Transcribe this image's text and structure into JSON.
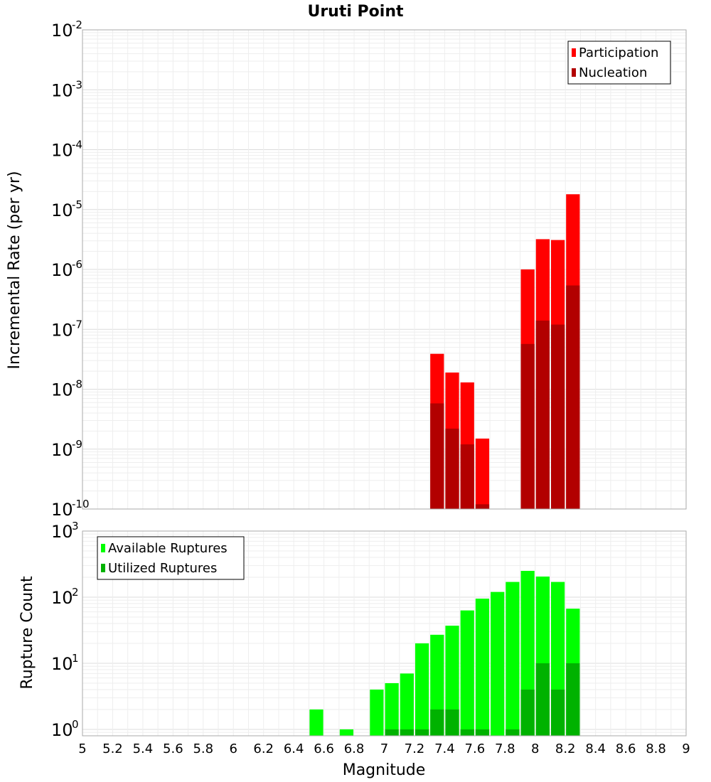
{
  "title": "Uruti Point",
  "chart_data": [
    {
      "type": "bar",
      "panel": "top",
      "ylabel": "Incremental Rate (per yr)",
      "yscale": "log",
      "ylim": [
        1e-10,
        0.01
      ],
      "y_ticks": [
        {
          "base": "10",
          "exp": "-2",
          "value": 0.01
        },
        {
          "base": "10",
          "exp": "-3",
          "value": 0.001
        },
        {
          "base": "10",
          "exp": "-4",
          "value": 0.0001
        },
        {
          "base": "10",
          "exp": "-5",
          "value": 1e-05
        },
        {
          "base": "10",
          "exp": "-6",
          "value": 1e-06
        },
        {
          "base": "10",
          "exp": "-7",
          "value": 1e-07
        },
        {
          "base": "10",
          "exp": "-8",
          "value": 1e-08
        },
        {
          "base": "10",
          "exp": "-9",
          "value": 1e-09
        },
        {
          "base": "10",
          "exp": "-10",
          "value": 1e-10
        }
      ],
      "legend_position": "top-right",
      "x": [
        7.35,
        7.45,
        7.55,
        7.65,
        7.95,
        8.05,
        8.15,
        8.25
      ],
      "series": [
        {
          "name": "Participation",
          "color": "#ff0000",
          "values": [
            3.9e-08,
            1.9e-08,
            1.3e-08,
            1.5e-09,
            1e-06,
            3.2e-06,
            3.1e-06,
            1.8e-05
          ]
        },
        {
          "name": "Nucleation",
          "color": "#b20000",
          "values": [
            5.8e-09,
            2.2e-09,
            1.2e-09,
            1.2e-10,
            5.7e-08,
            1.4e-07,
            1.2e-07,
            5.4e-07
          ]
        }
      ]
    },
    {
      "type": "bar",
      "panel": "bottom",
      "ylabel": "Rupture Count",
      "yscale": "log",
      "ylim": [
        0.8,
        1000
      ],
      "y_ticks": [
        {
          "base": "10",
          "exp": "3",
          "value": 1000
        },
        {
          "base": "10",
          "exp": "2",
          "value": 100
        },
        {
          "base": "10",
          "exp": "1",
          "value": 10
        },
        {
          "base": "10",
          "exp": "0",
          "value": 1
        }
      ],
      "legend_position": "top-left",
      "series": [
        {
          "name": "Available Ruptures",
          "color": "#00ff00",
          "x": [
            6.55,
            6.75,
            6.95,
            7.05,
            7.15,
            7.25,
            7.35,
            7.45,
            7.55,
            7.65,
            7.75,
            7.85,
            7.95,
            8.05,
            8.15,
            8.25
          ],
          "values": [
            2,
            1,
            4,
            5,
            7,
            20,
            27,
            37,
            63,
            95,
            120,
            170,
            250,
            205,
            170,
            67
          ]
        },
        {
          "name": "Utilized Ruptures",
          "color": "#00b200",
          "x": [
            7.05,
            7.15,
            7.25,
            7.35,
            7.45,
            7.55,
            7.65,
            7.85,
            7.95,
            8.05,
            8.15,
            8.25
          ],
          "values": [
            1,
            1,
            1,
            2,
            2,
            1,
            1,
            1,
            4,
            10,
            4,
            10
          ]
        }
      ]
    }
  ],
  "xaxis": {
    "label": "Magnitude",
    "xlim": [
      5,
      9
    ],
    "ticks": [
      "5",
      "5.2",
      "5.4",
      "5.6",
      "5.8",
      "6",
      "6.2",
      "6.4",
      "6.6",
      "6.8",
      "7",
      "7.2",
      "7.4",
      "7.6",
      "7.8",
      "8",
      "8.2",
      "8.4",
      "8.6",
      "8.8",
      "9"
    ]
  }
}
